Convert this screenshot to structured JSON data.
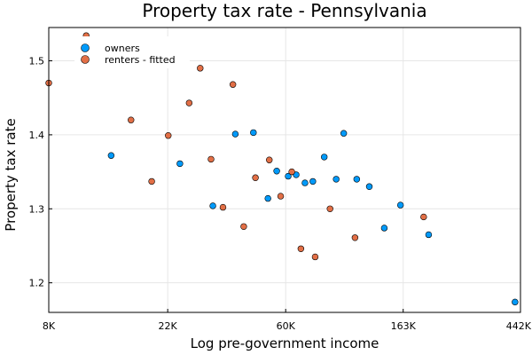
{
  "chart_data": {
    "type": "scatter",
    "title": "Property tax rate - Pennsylvania",
    "xlabel": "Log pre-government income",
    "ylabel": "Property tax rate",
    "x_scale": "log",
    "xlim": [
      8000,
      442000
    ],
    "ylim": [
      1.16,
      1.545
    ],
    "x_ticks": [
      {
        "value": 8000,
        "label": "8K"
      },
      {
        "value": 22000,
        "label": "22K"
      },
      {
        "value": 60000,
        "label": "60K"
      },
      {
        "value": 163000,
        "label": "163K"
      },
      {
        "value": 442000,
        "label": "442K"
      }
    ],
    "y_ticks": [
      {
        "value": 1.2,
        "label": "1.2"
      },
      {
        "value": 1.3,
        "label": "1.3"
      },
      {
        "value": 1.4,
        "label": "1.4"
      },
      {
        "value": 1.5,
        "label": "1.5"
      }
    ],
    "grid": true,
    "legend_position": "top-left",
    "series": [
      {
        "name": "owners",
        "color": "#009AFA",
        "points": [
          {
            "x": 13600,
            "y": 1.372
          },
          {
            "x": 24400,
            "y": 1.361
          },
          {
            "x": 32300,
            "y": 1.304
          },
          {
            "x": 39100,
            "y": 1.401
          },
          {
            "x": 45600,
            "y": 1.403
          },
          {
            "x": 51600,
            "y": 1.314
          },
          {
            "x": 55600,
            "y": 1.351
          },
          {
            "x": 61300,
            "y": 1.344
          },
          {
            "x": 65600,
            "y": 1.346
          },
          {
            "x": 70700,
            "y": 1.335
          },
          {
            "x": 75600,
            "y": 1.337
          },
          {
            "x": 83300,
            "y": 1.37
          },
          {
            "x": 92200,
            "y": 1.34
          },
          {
            "x": 98300,
            "y": 1.402
          },
          {
            "x": 109800,
            "y": 1.34
          },
          {
            "x": 122200,
            "y": 1.33
          },
          {
            "x": 138800,
            "y": 1.274
          },
          {
            "x": 159300,
            "y": 1.305
          },
          {
            "x": 202400,
            "y": 1.265
          },
          {
            "x": 422000,
            "y": 1.174
          }
        ]
      },
      {
        "name": "renters - fitted",
        "color": "#E26F46",
        "points": [
          {
            "x": 8000,
            "y": 1.47
          },
          {
            "x": 11000,
            "y": 1.534
          },
          {
            "x": 16100,
            "y": 1.42
          },
          {
            "x": 19200,
            "y": 1.337
          },
          {
            "x": 22100,
            "y": 1.399
          },
          {
            "x": 26400,
            "y": 1.443
          },
          {
            "x": 29000,
            "y": 1.49
          },
          {
            "x": 31800,
            "y": 1.367
          },
          {
            "x": 35200,
            "y": 1.302
          },
          {
            "x": 38300,
            "y": 1.468
          },
          {
            "x": 42000,
            "y": 1.276
          },
          {
            "x": 46400,
            "y": 1.342
          },
          {
            "x": 52200,
            "y": 1.366
          },
          {
            "x": 57500,
            "y": 1.317
          },
          {
            "x": 63200,
            "y": 1.35
          },
          {
            "x": 68300,
            "y": 1.246
          },
          {
            "x": 77100,
            "y": 1.235
          },
          {
            "x": 87500,
            "y": 1.3
          },
          {
            "x": 108200,
            "y": 1.261
          },
          {
            "x": 194000,
            "y": 1.289
          }
        ]
      }
    ]
  }
}
